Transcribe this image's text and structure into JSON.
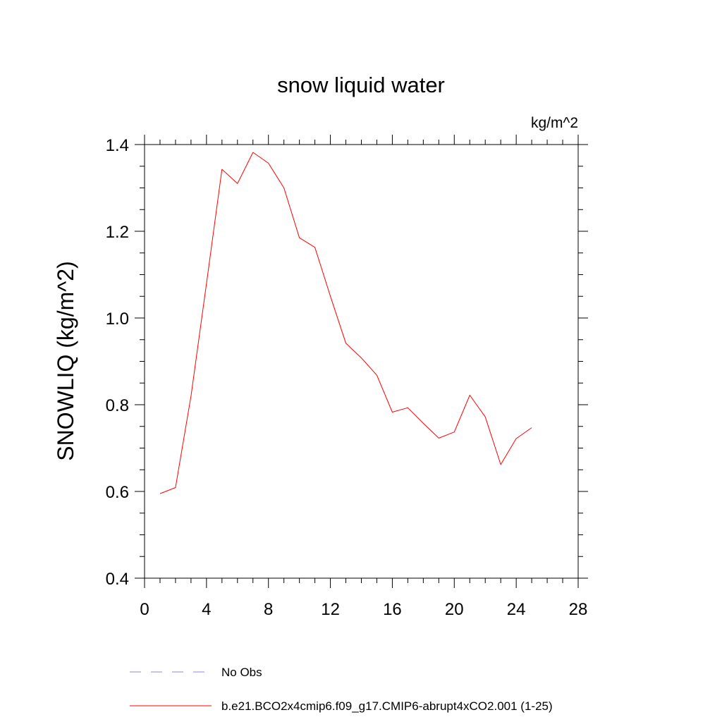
{
  "chart_data": {
    "type": "line",
    "title": "snow liquid water",
    "units_label": "kg/m^2",
    "xlabel": "",
    "ylabel": "SNOWLIQ  (kg/m^2)",
    "xlim": [
      0,
      28
    ],
    "ylim": [
      0.4,
      1.4
    ],
    "x_ticks": [
      0,
      4,
      8,
      12,
      16,
      20,
      24,
      28
    ],
    "x_tick_labels": [
      "0",
      "4",
      "8",
      "12",
      "16",
      "20",
      "24",
      "28"
    ],
    "y_ticks": [
      0.4,
      0.6,
      0.8,
      1.0,
      1.2,
      1.4
    ],
    "y_tick_labels": [
      "0.4",
      "0.6",
      "0.8",
      "1.0",
      "1.2",
      "1.4"
    ],
    "grid": false,
    "legend_position": "bottom",
    "series": [
      {
        "name": "b.e21.BCO2x4cmip6.f09_g17.CMIP6-abrupt4xCO2.001 (1-25)",
        "color": "#ff0000",
        "style": "solid",
        "x": [
          1,
          2,
          3,
          4,
          5,
          6,
          7,
          8,
          9,
          10,
          11,
          12,
          13,
          14,
          15,
          16,
          17,
          18,
          19,
          20,
          21,
          22,
          23,
          24,
          25
        ],
        "values": [
          0.595,
          0.609,
          0.82,
          1.08,
          1.343,
          1.31,
          1.382,
          1.357,
          1.3,
          1.185,
          1.163,
          1.05,
          0.942,
          0.908,
          0.868,
          0.783,
          0.793,
          0.757,
          0.723,
          0.737,
          0.822,
          0.772,
          0.662,
          0.722,
          0.747
        ]
      }
    ],
    "legend": [
      {
        "label": "No Obs",
        "color": "#8a8ad8",
        "style": "dashed"
      },
      {
        "label": "b.e21.BCO2x4cmip6.f09_g17.CMIP6-abrupt4xCO2.001 (1-25)",
        "color": "#ff0000",
        "style": "solid"
      }
    ]
  }
}
